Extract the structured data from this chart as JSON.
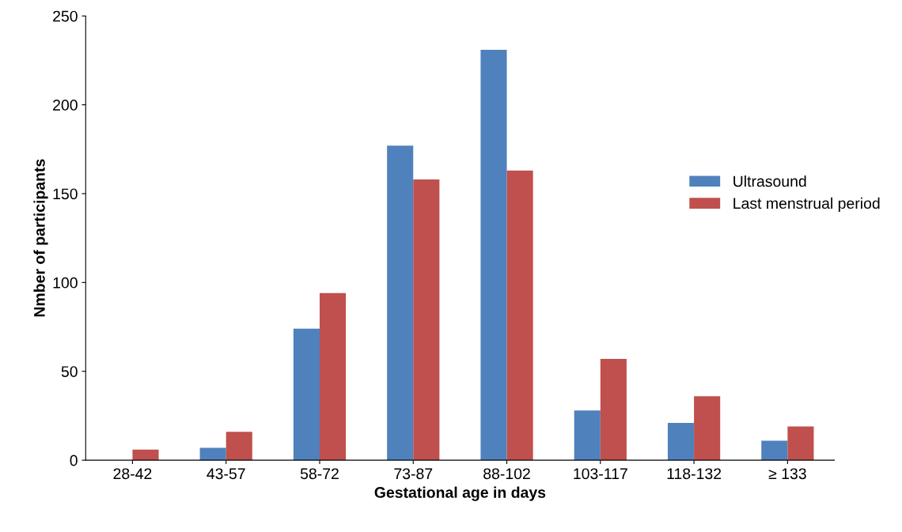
{
  "chart_data": {
    "type": "bar",
    "xlabel": "Gestational age in days",
    "ylabel": "Nmber of participants",
    "categories": [
      "28-42",
      "43-57",
      "58-72",
      "73-87",
      "88-102",
      "103-117",
      "118-132",
      "≥ 133"
    ],
    "series": [
      {
        "name": "Ultrasound",
        "color": "#4f81bd",
        "values": [
          0,
          7,
          74,
          177,
          231,
          28,
          21,
          11
        ]
      },
      {
        "name": "Last menstrual period",
        "color": "#c0504d",
        "values": [
          6,
          16,
          94,
          158,
          163,
          57,
          36,
          19
        ]
      }
    ],
    "ylim": [
      0,
      250
    ],
    "yticks": [
      0,
      50,
      100,
      150,
      200,
      250
    ],
    "grid": false,
    "legend": "right"
  }
}
